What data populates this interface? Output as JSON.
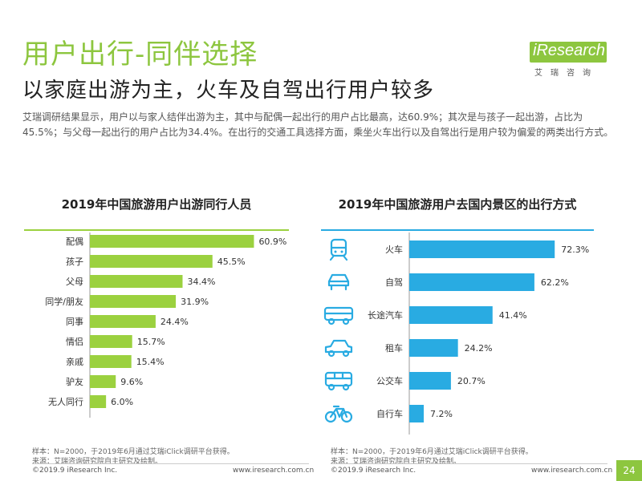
{
  "header": {
    "title": "用户出行-同伴选择",
    "subtitle": "以家庭出游为主，火车及自驾出行用户较多",
    "description": "艾瑞调研结果显示，用户以与家人结伴出游为主，其中与配偶一起出行的用户占比最高，达60.9%；其次是与孩子一起出游，占比为45.5%；与父母一起出行的用户占比为34.4%。在出行的交通工具选择方面，乘坐火车出行以及自驾出行是用户较为偏爱的两类出行方式。"
  },
  "logo": {
    "name": "iResearch",
    "sub": "艾瑞咨询"
  },
  "colors": {
    "green": "#9bd13f",
    "blue": "#29abe2",
    "title_green": "#8dc63f"
  },
  "chart_data": [
    {
      "type": "bar",
      "orientation": "horizontal",
      "title": "2019年中国旅游用户出游同行人员",
      "categories": [
        "配偶",
        "孩子",
        "父母",
        "同学/朋友",
        "同事",
        "情侣",
        "亲戚",
        "驴友",
        "无人同行"
      ],
      "values": [
        60.9,
        45.5,
        34.4,
        31.9,
        24.4,
        15.7,
        15.4,
        9.6,
        6.0
      ],
      "labels": [
        "60.9%",
        "45.5%",
        "34.4%",
        "31.9%",
        "24.4%",
        "15.7%",
        "15.4%",
        "9.6%",
        "6.0%"
      ],
      "xlim": [
        0,
        70
      ],
      "unit": "%"
    },
    {
      "type": "bar",
      "orientation": "horizontal",
      "title": "2019年中国旅游用户去国内景区的出行方式",
      "categories": [
        "火车",
        "自驾",
        "长途汽车",
        "租车",
        "公交车",
        "自行车"
      ],
      "values": [
        72.3,
        62.2,
        41.4,
        24.2,
        20.7,
        7.2
      ],
      "labels": [
        "72.3%",
        "62.2%",
        "41.4%",
        "24.2%",
        "20.7%",
        "7.2%"
      ],
      "icons": [
        "train-icon",
        "car-icon",
        "bus-icon",
        "rental-car-icon",
        "minibus-icon",
        "bicycle-icon"
      ],
      "xlim": [
        0,
        75
      ],
      "unit": "%"
    }
  ],
  "notes": {
    "left": "样本：N=2000，于2019年6月通过艾瑞iClick调研平台获得。",
    "left_source": "来源：艾瑞咨询研究院自主研究及绘制。",
    "right": "样本：N=2000，于2019年6月通过艾瑞iClick调研平台获得。",
    "right_source": "来源：艾瑞咨询研究院自主研究及绘制。"
  },
  "footer": {
    "left_copy": "©2019.9 iResearch Inc.",
    "left_url": "www.iresearch.com.cn",
    "right_copy": "©2019.9 iResearch Inc.",
    "right_url": "www.iresearch.com.cn",
    "page": "24"
  }
}
